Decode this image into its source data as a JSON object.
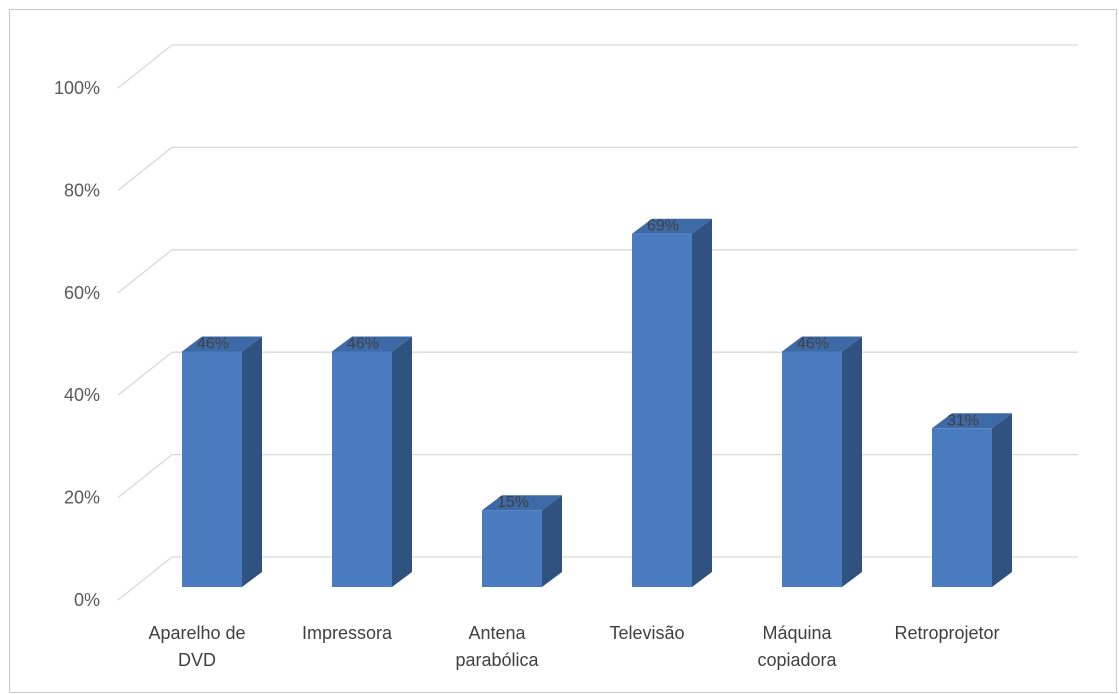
{
  "chart_data": {
    "type": "bar",
    "style": "3d-column",
    "categories": [
      [
        "Aparelho de",
        "DVD"
      ],
      [
        "Impressora"
      ],
      [
        "Antena",
        "parabólica"
      ],
      [
        "Televisão"
      ],
      [
        "Máquina",
        "copiadora"
      ],
      [
        "Retroprojetor"
      ]
    ],
    "values": [
      46,
      46,
      15,
      69,
      46,
      31
    ],
    "data_labels": [
      "46%",
      "46%",
      "15%",
      "69%",
      "46%",
      "31%"
    ],
    "ylim": [
      0,
      100
    ],
    "yticks": [
      "0%",
      "20%",
      "40%",
      "60%",
      "80%",
      "100%"
    ],
    "grid": true,
    "legend": "none",
    "colors": {
      "front": "#4a7bbf",
      "side": "#2f5280",
      "top": "#3d6aa6",
      "grid": "#d9d9d9"
    }
  }
}
